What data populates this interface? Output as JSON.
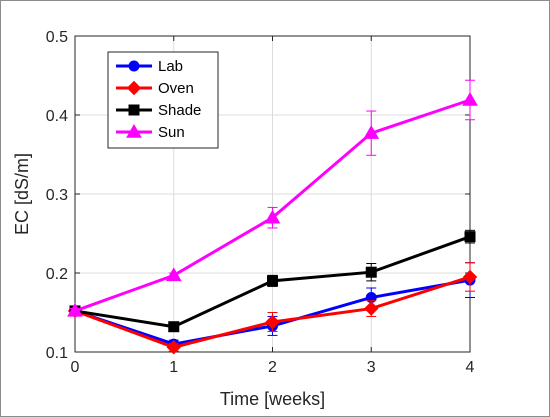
{
  "chart_data": {
    "type": "line",
    "xlabel": "Time [weeks]",
    "ylabel": "EC [dS/m]",
    "xlim": [
      0,
      4
    ],
    "ylim": [
      0.1,
      0.5
    ],
    "xticks": [
      "0",
      "1",
      "2",
      "3",
      "4"
    ],
    "yticks": [
      "0.1",
      "0.2",
      "0.3",
      "0.4",
      "0.5"
    ],
    "x": [
      0,
      1,
      2,
      3,
      4
    ],
    "grid": true,
    "legend_position": "top-left",
    "series": [
      {
        "name": "Lab",
        "color": "#0000ff",
        "marker": "circle",
        "values": [
          0.152,
          0.11,
          0.133,
          0.169,
          0.191
        ],
        "errors": [
          0.003,
          0.005,
          0.012,
          0.012,
          0.022
        ]
      },
      {
        "name": "Oven",
        "color": "#ff0000",
        "marker": "diamond",
        "values": [
          0.152,
          0.106,
          0.138,
          0.155,
          0.195
        ],
        "errors": [
          0.003,
          0.005,
          0.012,
          0.01,
          0.018
        ]
      },
      {
        "name": "Shade",
        "color": "#000000",
        "marker": "square",
        "values": [
          0.152,
          0.132,
          0.19,
          0.201,
          0.246
        ],
        "errors": [
          0.003,
          0.006,
          0.007,
          0.011,
          0.008
        ]
      },
      {
        "name": "Sun",
        "color": "#ff00ff",
        "marker": "triangle",
        "values": [
          0.152,
          0.197,
          0.27,
          0.377,
          0.419
        ],
        "errors": [
          0.003,
          0.003,
          0.013,
          0.028,
          0.025
        ]
      }
    ]
  }
}
